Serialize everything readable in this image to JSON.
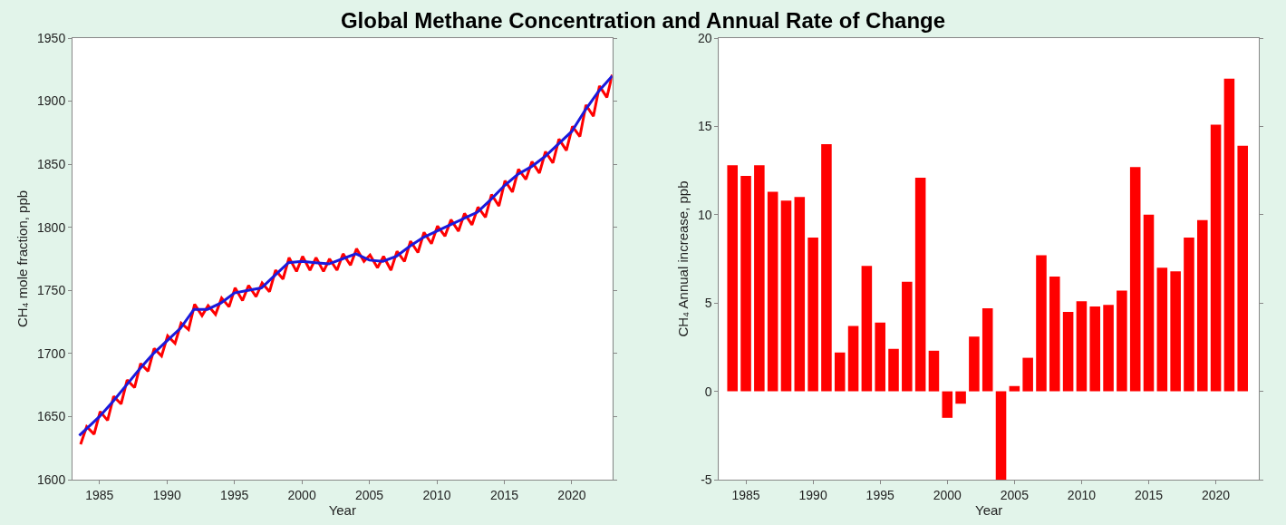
{
  "chart_data": [
    {
      "type": "line",
      "title": "Global Methane Concentration and Annual Rate of Change",
      "xlabel": "Year",
      "ylabel": "CH₄ mole fraction, ppb",
      "xlim": [
        1983,
        2023
      ],
      "xticks": [
        1985,
        1990,
        1995,
        2000,
        2005,
        2010,
        2015,
        2020
      ],
      "ylim": [
        1600,
        1950
      ],
      "yticks": [
        1600,
        1650,
        1700,
        1750,
        1800,
        1850,
        1900,
        1950
      ],
      "grid": false,
      "marker": "none",
      "line_style": "solid",
      "series": [
        {
          "type": "line",
          "color": "#ff0000",
          "x": [
            1983.6,
            1984.05,
            1984.6,
            1985.05,
            1985.6,
            1986.05,
            1986.6,
            1987.05,
            1987.6,
            1988.05,
            1988.6,
            1989.05,
            1989.6,
            1990.05,
            1990.6,
            1991.05,
            1991.6,
            1992.05,
            1992.6,
            1993.05,
            1993.6,
            1994.05,
            1994.6,
            1995.05,
            1995.6,
            1996.05,
            1996.6,
            1997.05,
            1997.6,
            1998.05,
            1998.6,
            1999.05,
            1999.6,
            2000.05,
            2000.6,
            2001.05,
            2001.6,
            2002.05,
            2002.6,
            2003.05,
            2003.6,
            2004.05,
            2004.6,
            2005.05,
            2005.6,
            2006.05,
            2006.6,
            2007.05,
            2007.6,
            2008.05,
            2008.6,
            2009.05,
            2009.6,
            2010.05,
            2010.6,
            2011.05,
            2011.6,
            2012.05,
            2012.6,
            2013.05,
            2013.6,
            2014.05,
            2014.6,
            2015.05,
            2015.6,
            2016.05,
            2016.6,
            2017.05,
            2017.6,
            2018.05,
            2018.6,
            2019.05,
            2019.6,
            2020.05,
            2020.6,
            2021.05,
            2021.6,
            2022.05,
            2022.6,
            2023.0
          ],
          "values": [
            1628,
            1642,
            1636,
            1654,
            1647,
            1666,
            1660,
            1679,
            1673,
            1692,
            1686,
            1704,
            1698,
            1714,
            1708,
            1724,
            1719,
            1739,
            1730,
            1738,
            1731,
            1744,
            1737,
            1752,
            1742,
            1754,
            1745,
            1756,
            1749,
            1766,
            1759,
            1776,
            1765,
            1777,
            1766,
            1776,
            1765,
            1775,
            1766,
            1779,
            1770,
            1783,
            1773,
            1778,
            1768,
            1777,
            1766,
            1781,
            1773,
            1789,
            1780,
            1796,
            1787,
            1801,
            1793,
            1806,
            1797,
            1811,
            1802,
            1816,
            1808,
            1826,
            1817,
            1837,
            1828,
            1846,
            1838,
            1852,
            1843,
            1860,
            1851,
            1870,
            1861,
            1880,
            1872,
            1897,
            1888,
            1912,
            1903,
            1921
          ]
        },
        {
          "type": "line",
          "color": "#1a1adc",
          "x": [
            1983.5,
            1985,
            1986,
            1987,
            1988,
            1989,
            1990,
            1991,
            1992,
            1993,
            1994,
            1995,
            1996,
            1997,
            1998,
            1999,
            2000,
            2001,
            2002,
            2003,
            2004,
            2005,
            2006,
            2007,
            2008,
            2009,
            2010,
            2011,
            2012,
            2013,
            2014,
            2015,
            2016,
            2017,
            2018,
            2019,
            2020,
            2021,
            2022,
            2023
          ],
          "values": [
            1635,
            1650,
            1662,
            1675,
            1688,
            1700,
            1710,
            1720,
            1735,
            1735,
            1740,
            1748,
            1750,
            1752,
            1762,
            1772,
            1773,
            1772,
            1771,
            1775,
            1779,
            1774,
            1773,
            1777,
            1785,
            1792,
            1797,
            1802,
            1807,
            1812,
            1822,
            1833,
            1842,
            1848,
            1856,
            1866,
            1876,
            1893,
            1908,
            1920
          ]
        }
      ]
    },
    {
      "type": "bar",
      "xlabel": "Year",
      "ylabel": "CH₄ Annual increase, ppb",
      "xlim": [
        1983,
        2023.2
      ],
      "xticks": [
        1985,
        1990,
        1995,
        2000,
        2005,
        2010,
        2015,
        2020
      ],
      "ylim": [
        -5,
        20
      ],
      "yticks": [
        -5,
        0,
        5,
        10,
        15,
        20
      ],
      "grid": false,
      "color": "#ff0000",
      "x": [
        1984,
        1985,
        1986,
        1987,
        1988,
        1989,
        1990,
        1991,
        1992,
        1993,
        1994,
        1995,
        1996,
        1997,
        1998,
        1999,
        2000,
        2001,
        2002,
        2003,
        2004,
        2005,
        2006,
        2007,
        2008,
        2009,
        2010,
        2011,
        2012,
        2013,
        2014,
        2015,
        2016,
        2017,
        2018,
        2019,
        2020,
        2021,
        2022
      ],
      "values": [
        12.8,
        12.2,
        12.8,
        11.3,
        10.8,
        11.0,
        8.7,
        14.0,
        2.2,
        3.7,
        7.1,
        3.9,
        2.4,
        6.2,
        12.1,
        2.3,
        -1.5,
        -0.7,
        3.1,
        4.7,
        -5.0,
        0.3,
        1.9,
        7.7,
        6.5,
        4.5,
        5.1,
        4.8,
        4.9,
        5.7,
        12.7,
        10.0,
        7.0,
        6.8,
        8.7,
        9.7,
        15.1,
        17.7,
        13.9
      ]
    }
  ]
}
